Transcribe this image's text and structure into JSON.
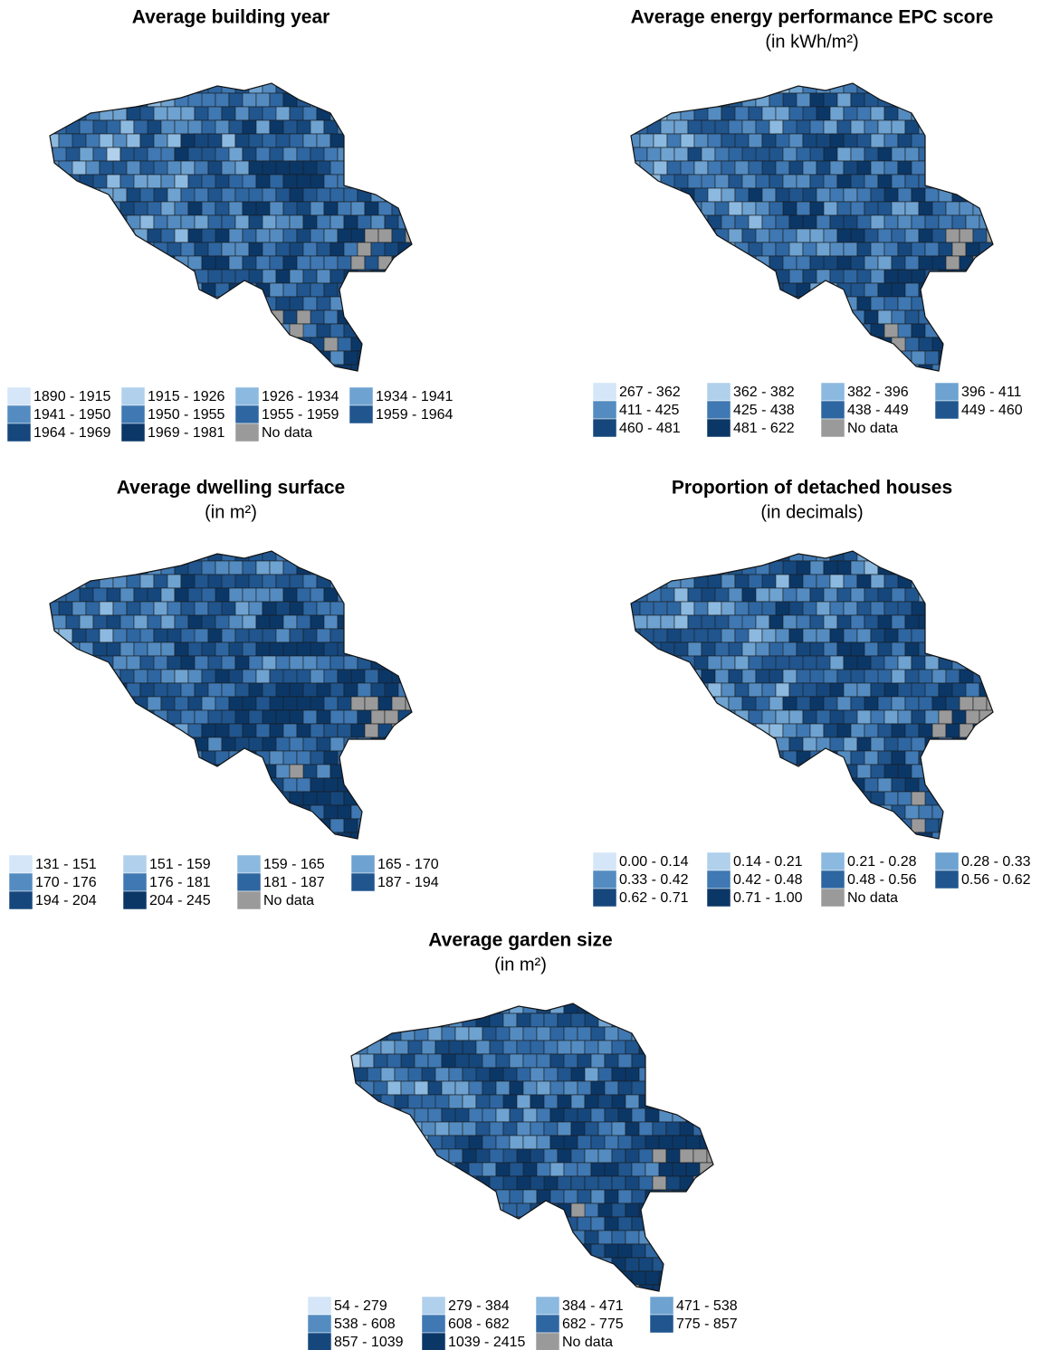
{
  "maps": [
    {
      "title": "Average building year",
      "legend": [
        {
          "label": "1890 - 1915",
          "color": "#d4e6f7"
        },
        {
          "label": "1915 - 1926",
          "color": "#b0d0ec"
        },
        {
          "label": "1926 - 1934",
          "color": "#8cb9df"
        },
        {
          "label": "1934 - 1941",
          "color": "#6ea2d0"
        },
        {
          "label": "1941 - 1950",
          "color": "#548cc1"
        },
        {
          "label": "1950 - 1955",
          "color": "#3f78b2"
        },
        {
          "label": "1955 - 1959",
          "color": "#2e66a1"
        },
        {
          "label": "1959 - 1964",
          "color": "#20558e"
        },
        {
          "label": "1964 - 1969",
          "color": "#15477c"
        },
        {
          "label": "1969 - 1981",
          "color": "#0b3767"
        },
        {
          "label": "No data",
          "color": "#9a9a9a"
        }
      ]
    },
    {
      "title": "Average energy performance EPC score",
      "subtitle": "(in kWh/m²)",
      "legend": [
        {
          "label": "267 - 362",
          "color": "#d4e6f7"
        },
        {
          "label": "362 - 382",
          "color": "#b0d0ec"
        },
        {
          "label": "382 - 396",
          "color": "#8cb9df"
        },
        {
          "label": "396 - 411",
          "color": "#6ea2d0"
        },
        {
          "label": "411 - 425",
          "color": "#548cc1"
        },
        {
          "label": "425 - 438",
          "color": "#3f78b2"
        },
        {
          "label": "438 - 449",
          "color": "#2e66a1"
        },
        {
          "label": "449 - 460",
          "color": "#20558e"
        },
        {
          "label": "460 - 481",
          "color": "#15477c"
        },
        {
          "label": "481 - 622",
          "color": "#0b3767"
        },
        {
          "label": "No data",
          "color": "#9a9a9a"
        }
      ]
    },
    {
      "title": "Average dwelling surface",
      "subtitle": "(in m²)",
      "legend": [
        {
          "label": "131 - 151",
          "color": "#d4e6f7"
        },
        {
          "label": "151 - 159",
          "color": "#b0d0ec"
        },
        {
          "label": "159 - 165",
          "color": "#8cb9df"
        },
        {
          "label": "165 - 170",
          "color": "#6ea2d0"
        },
        {
          "label": "170 - 176",
          "color": "#548cc1"
        },
        {
          "label": "176 - 181",
          "color": "#3f78b2"
        },
        {
          "label": "181 - 187",
          "color": "#2e66a1"
        },
        {
          "label": "187 - 194",
          "color": "#20558e"
        },
        {
          "label": "194 - 204",
          "color": "#15477c"
        },
        {
          "label": "204 - 245",
          "color": "#0b3767"
        },
        {
          "label": "No data",
          "color": "#9a9a9a"
        }
      ]
    },
    {
      "title": "Proportion of detached houses",
      "subtitle": "(in decimals)",
      "legend": [
        {
          "label": "0.00 - 0.14",
          "color": "#d4e6f7"
        },
        {
          "label": "0.14 - 0.21",
          "color": "#b0d0ec"
        },
        {
          "label": "0.21 - 0.28",
          "color": "#8cb9df"
        },
        {
          "label": "0.28 - 0.33",
          "color": "#6ea2d0"
        },
        {
          "label": "0.33 - 0.42",
          "color": "#548cc1"
        },
        {
          "label": "0.42 - 0.48",
          "color": "#3f78b2"
        },
        {
          "label": "0.48 - 0.56",
          "color": "#2e66a1"
        },
        {
          "label": "0.56 - 0.62",
          "color": "#20558e"
        },
        {
          "label": "0.62 - 0.71",
          "color": "#15477c"
        },
        {
          "label": "0.71 - 1.00",
          "color": "#0b3767"
        },
        {
          "label": "No data",
          "color": "#9a9a9a"
        }
      ]
    },
    {
      "title": "Average garden size",
      "subtitle": "(in m²)",
      "legend": [
        {
          "label": "54 - 279",
          "color": "#d4e6f7"
        },
        {
          "label": "279 - 384",
          "color": "#b0d0ec"
        },
        {
          "label": "384 - 471",
          "color": "#8cb9df"
        },
        {
          "label": "471 - 538",
          "color": "#6ea2d0"
        },
        {
          "label": "538 - 608",
          "color": "#548cc1"
        },
        {
          "label": "608 - 682",
          "color": "#3f78b2"
        },
        {
          "label": "682 - 775",
          "color": "#2e66a1"
        },
        {
          "label": "775 - 857",
          "color": "#20558e"
        },
        {
          "label": "857 - 1039",
          "color": "#15477c"
        },
        {
          "label": "1039 - 2415",
          "color": "#0b3767"
        },
        {
          "label": "No data",
          "color": "#9a9a9a"
        }
      ]
    }
  ]
}
